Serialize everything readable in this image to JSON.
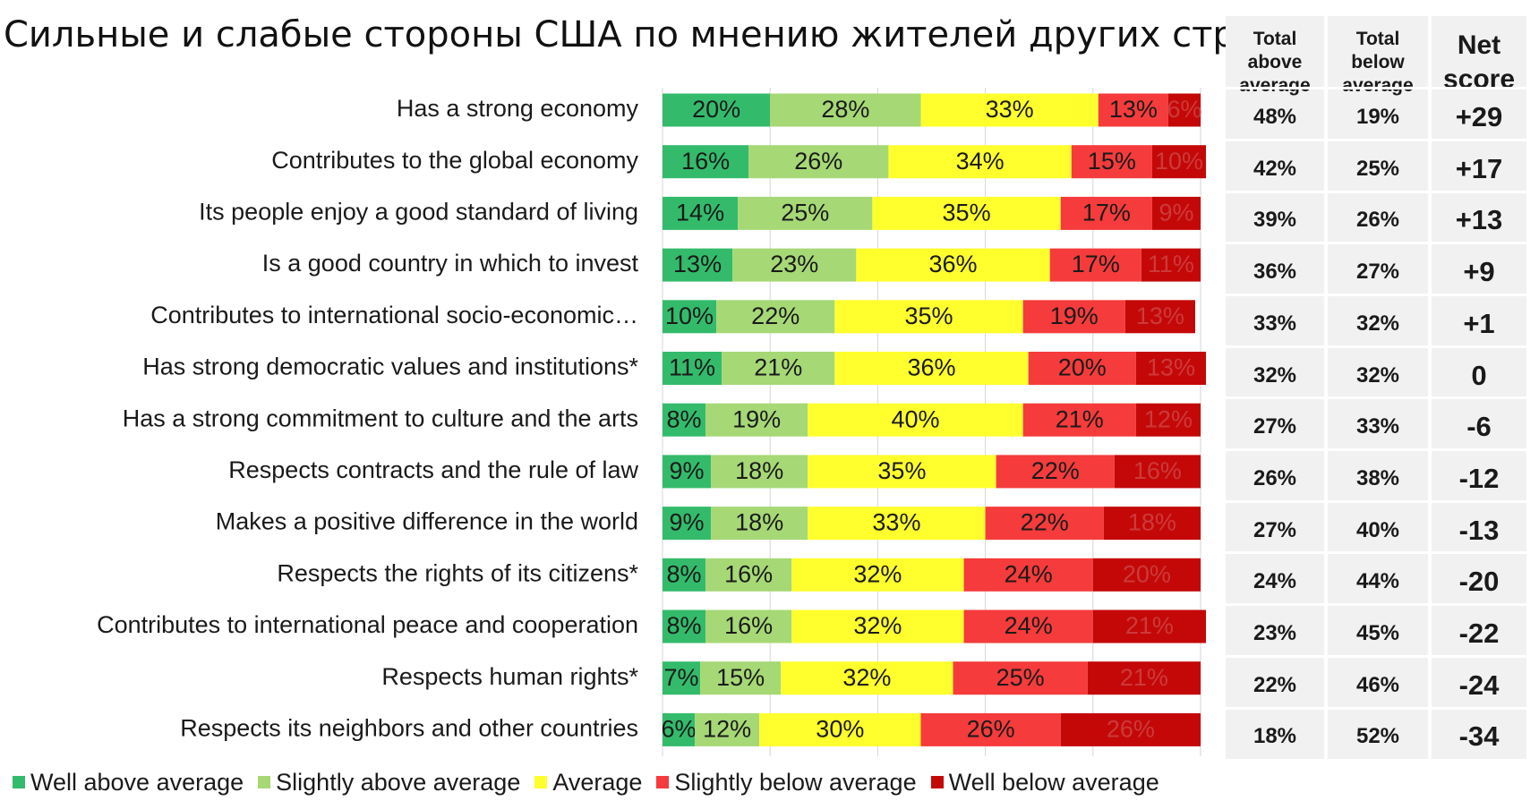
{
  "title": "Сильные и слабые стороны США по мнению жителей других стран",
  "colors": {
    "well_above": "#33bb6b",
    "slightly_above": "#a6d876",
    "average": "#ffff2e",
    "slightly_below": "#f53b3b",
    "well_below": "#c40808",
    "table_bg": "#f1f1f1"
  },
  "chart_data": {
    "type": "bar",
    "orientation": "horizontal",
    "stacked": true,
    "normalized": true,
    "xlim": [
      0,
      100
    ],
    "grid": false,
    "legend_position": "bottom",
    "categories": [
      "Has a strong economy",
      "Contributes to the global economy",
      "Its people enjoy a good standard of living",
      "Is a good country in which to invest",
      "Contributes to international socio-economic…",
      "Has strong democratic values and institutions*",
      "Has a strong commitment to culture and the arts",
      "Respects contracts and the rule of law",
      "Makes a positive difference in the world",
      "Respects the rights of its citizens*",
      "Contributes to international peace and cooperation",
      "Respects human rights*",
      "Respects its neighbors and other countries"
    ],
    "series": [
      {
        "name": "Well above average",
        "color_key": "well_above",
        "label_color": "#1a1a1a",
        "values": [
          20,
          16,
          14,
          13,
          10,
          11,
          8,
          9,
          9,
          8,
          8,
          7,
          6
        ]
      },
      {
        "name": "Slightly above average",
        "color_key": "slightly_above",
        "label_color": "#1a1a1a",
        "values": [
          28,
          26,
          25,
          23,
          22,
          21,
          19,
          18,
          18,
          16,
          16,
          15,
          12
        ]
      },
      {
        "name": "Average",
        "color_key": "average",
        "label_color": "#1a1a1a",
        "values": [
          33,
          34,
          35,
          36,
          35,
          36,
          40,
          35,
          33,
          32,
          32,
          32,
          30
        ]
      },
      {
        "name": "Slightly below average",
        "color_key": "slightly_below",
        "label_color": "#1a1a1a",
        "values": [
          13,
          15,
          17,
          17,
          19,
          20,
          21,
          22,
          22,
          24,
          24,
          25,
          26
        ]
      },
      {
        "name": "Well below average",
        "color_key": "well_below",
        "label_color": "#cc3a3a",
        "values": [
          6,
          10,
          9,
          11,
          13,
          13,
          12,
          16,
          18,
          20,
          21,
          21,
          26
        ]
      }
    ]
  },
  "table": {
    "headers": {
      "above": "Total above average",
      "below": "Total below average",
      "net": "Net score"
    },
    "rows": [
      {
        "above": "48%",
        "below": "19%",
        "net": "+29"
      },
      {
        "above": "42%",
        "below": "25%",
        "net": "+17"
      },
      {
        "above": "39%",
        "below": "26%",
        "net": "+13"
      },
      {
        "above": "36%",
        "below": "27%",
        "net": "+9"
      },
      {
        "above": "33%",
        "below": "32%",
        "net": "+1"
      },
      {
        "above": "32%",
        "below": "32%",
        "net": "0"
      },
      {
        "above": "27%",
        "below": "33%",
        "net": "-6"
      },
      {
        "above": "26%",
        "below": "38%",
        "net": "-12"
      },
      {
        "above": "27%",
        "below": "40%",
        "net": "-13"
      },
      {
        "above": "24%",
        "below": "44%",
        "net": "-20"
      },
      {
        "above": "23%",
        "below": "45%",
        "net": "-22"
      },
      {
        "above": "22%",
        "below": "46%",
        "net": "-24"
      },
      {
        "above": "18%",
        "below": "52%",
        "net": "-34"
      }
    ]
  }
}
